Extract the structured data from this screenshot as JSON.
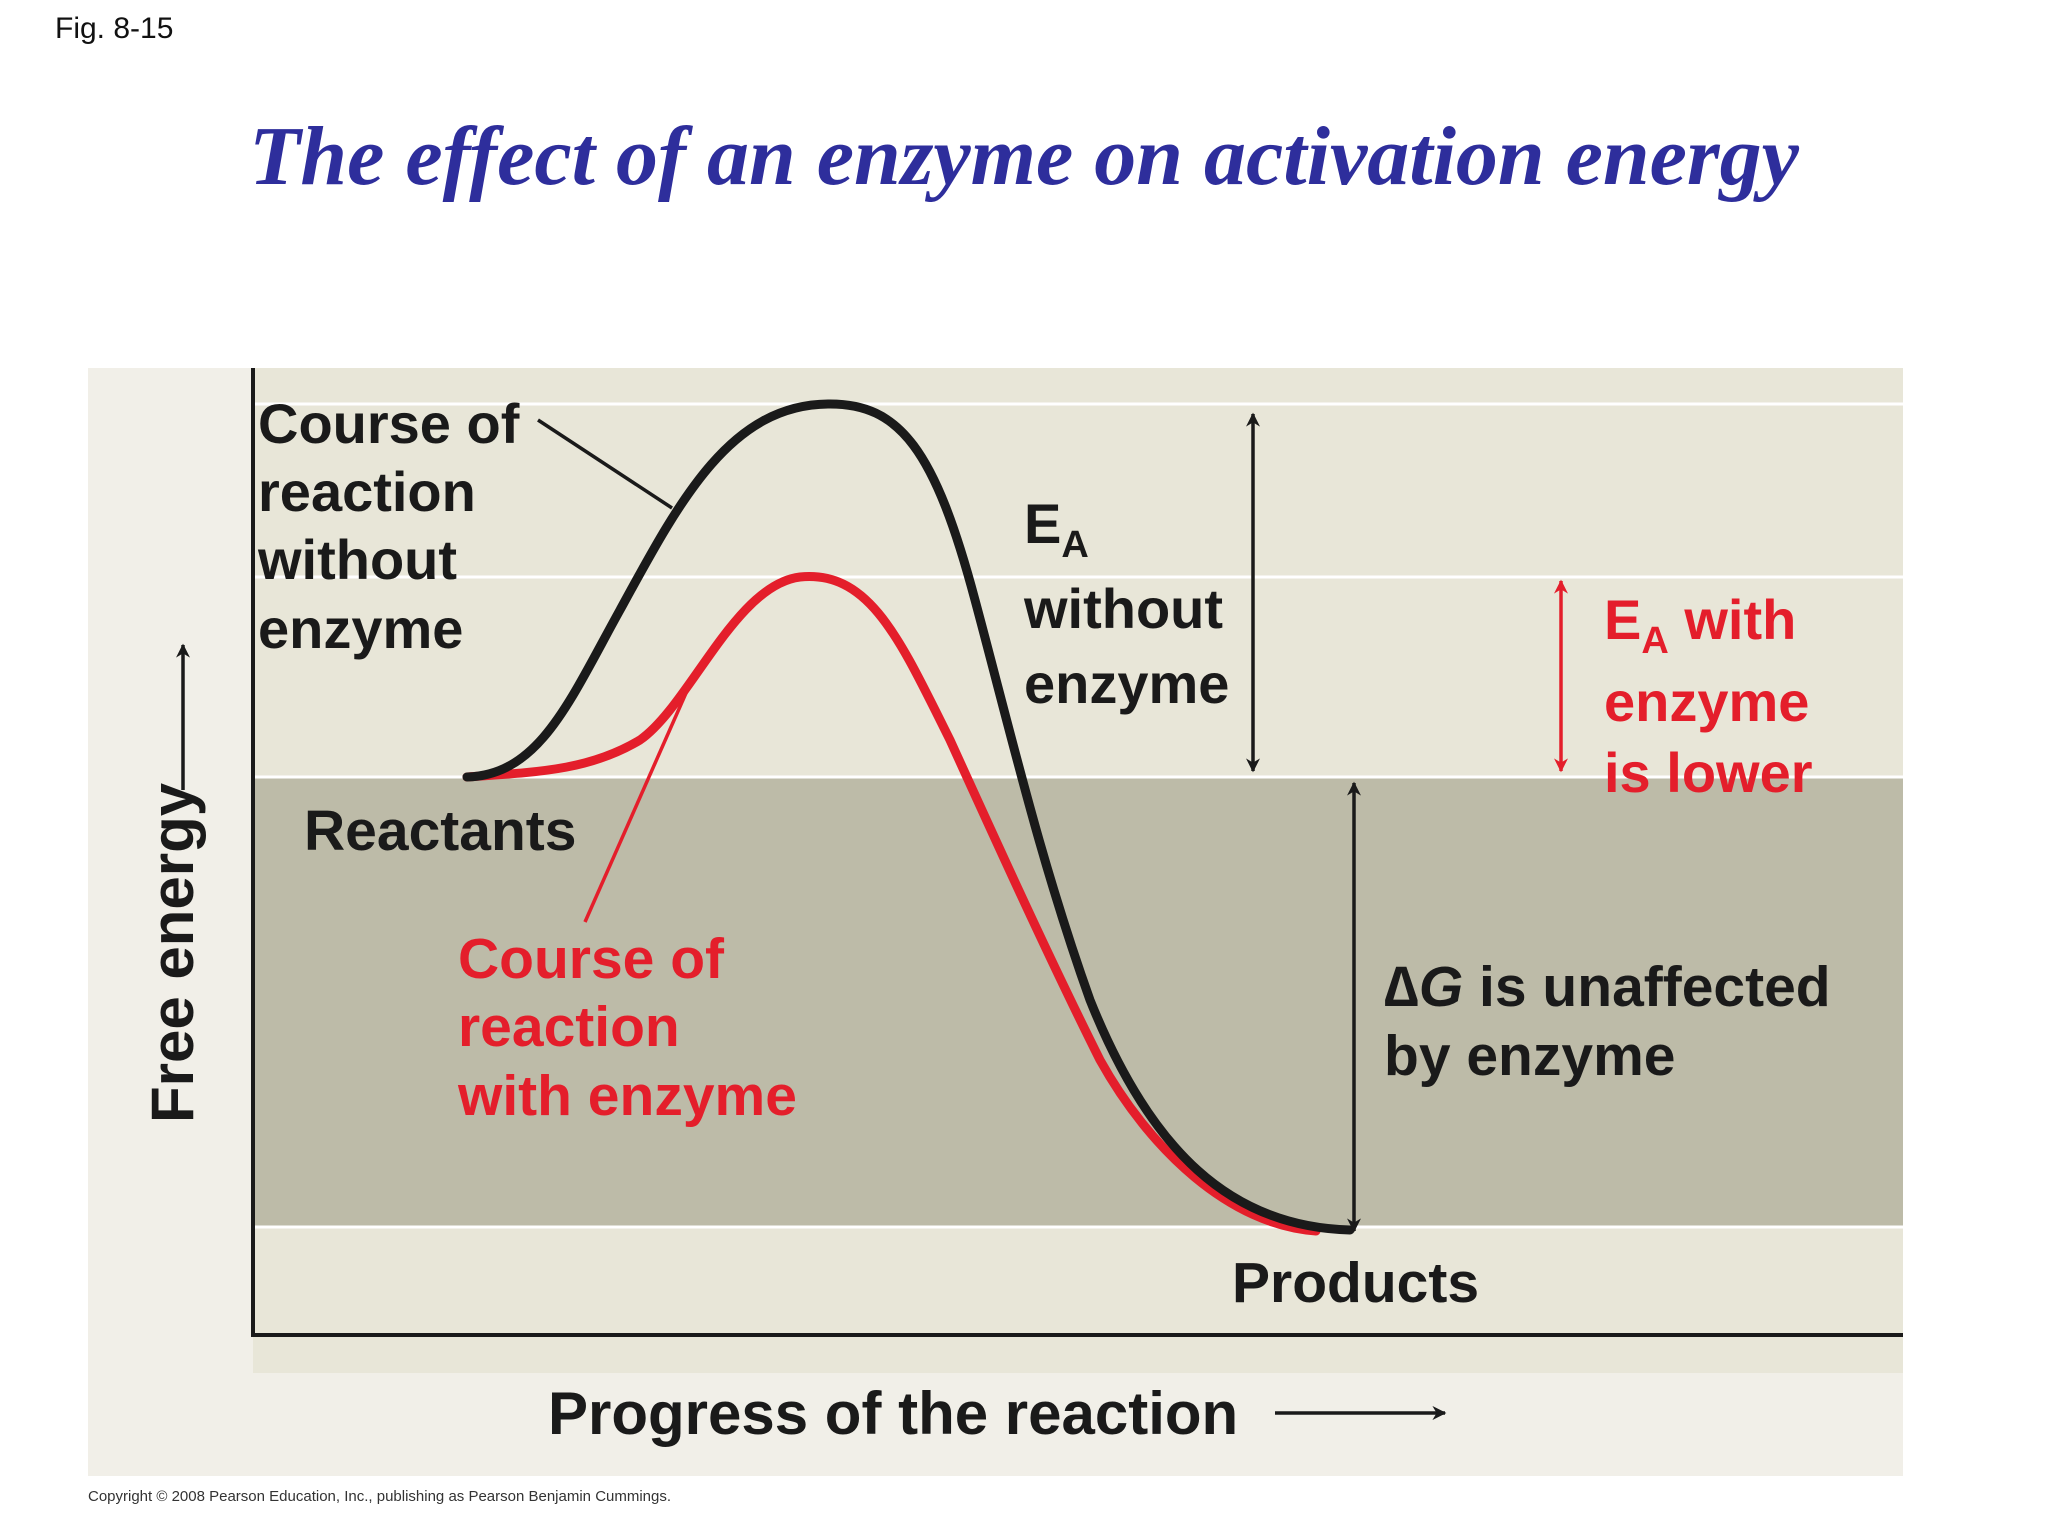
{
  "figure_label": "Fig. 8-15",
  "title": "The effect of an enzyme on activation energy",
  "copyright": "Copyright © 2008 Pearson Education, Inc., publishing as Pearson Benjamin Cummings.",
  "colors": {
    "title": "#2e2e9c",
    "enzyme_red": "#e41e2b",
    "curve_black": "#1a1a1a",
    "panel_light": "#e8e6d8",
    "panel_dark": "#bdbba8",
    "panel_frame": "#f1efe8"
  },
  "axes": {
    "y_label": "Free energy",
    "x_label": "Progress of the reaction"
  },
  "labels": {
    "without_enzyme": [
      "Course of",
      "reaction",
      "without",
      "enzyme"
    ],
    "reactants": "Reactants",
    "with_enzyme": [
      "Course of",
      "reaction",
      "with enzyme"
    ],
    "ea_without_main": "E",
    "ea_without_sub": "A",
    "ea_without_lines": [
      "without",
      "enzyme"
    ],
    "ea_with_main": "E",
    "ea_with_sub": "A",
    "ea_with_tail": " with",
    "ea_with_lines": [
      "enzyme",
      "is lower"
    ],
    "delta_symbol": "∆",
    "delta_g": "G",
    "delta_tail": " is unaffected",
    "delta_line2": "by enzyme",
    "products": "Products"
  }
}
